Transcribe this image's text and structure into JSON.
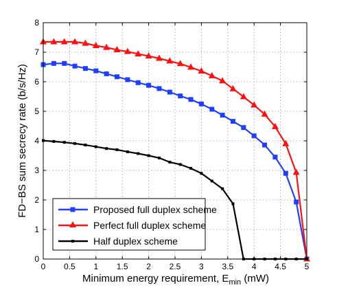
{
  "chart_data": {
    "type": "line",
    "title": "",
    "xlabel": {
      "main": "Minimum energy requirement, E",
      "sub": "min",
      "unit": " (mW)"
    },
    "ylabel": "FD−BS sum secrecy rate  (b/s/Hz)",
    "xlim": [
      0,
      5
    ],
    "ylim": [
      0,
      8
    ],
    "xticks": [
      0,
      0.5,
      1,
      1.5,
      2,
      2.5,
      3,
      3.5,
      4,
      4.5,
      5
    ],
    "xtick_labels": [
      "0",
      "0.5",
      "1",
      "1.5",
      "2",
      "2.5",
      "3",
      "3.5",
      "4",
      "4.5",
      "5"
    ],
    "yticks": [
      0,
      1,
      2,
      3,
      4,
      5,
      6,
      7,
      8
    ],
    "ytick_labels": [
      "0",
      "1",
      "2",
      "3",
      "4",
      "5",
      "6",
      "7",
      "8"
    ],
    "grid": true,
    "legend_position": "bottom-left",
    "series": [
      {
        "name": "Proposed full duplex scheme",
        "color": "#1f3fff",
        "marker": "square",
        "x": [
          0,
          0.2,
          0.4,
          0.6,
          0.8,
          1.0,
          1.2,
          1.4,
          1.6,
          1.8,
          2.0,
          2.2,
          2.4,
          2.6,
          2.8,
          3.0,
          3.2,
          3.4,
          3.6,
          3.8,
          4.0,
          4.2,
          4.4,
          4.6,
          4.8,
          5.0
        ],
        "y": [
          6.58,
          6.62,
          6.62,
          6.53,
          6.45,
          6.37,
          6.27,
          6.17,
          6.07,
          5.97,
          5.88,
          5.77,
          5.65,
          5.52,
          5.4,
          5.25,
          5.07,
          4.87,
          4.66,
          4.45,
          4.17,
          3.86,
          3.45,
          2.9,
          1.93,
          0
        ]
      },
      {
        "name": "Perfect full duplex scheme",
        "color": "#ff1010",
        "marker": "triangle",
        "x": [
          0,
          0.2,
          0.4,
          0.6,
          0.8,
          1.0,
          1.2,
          1.4,
          1.6,
          1.8,
          2.0,
          2.2,
          2.4,
          2.6,
          2.8,
          3.0,
          3.2,
          3.4,
          3.6,
          3.8,
          4.0,
          4.2,
          4.4,
          4.6,
          4.8,
          5.0
        ],
        "y": [
          7.35,
          7.35,
          7.35,
          7.35,
          7.3,
          7.22,
          7.16,
          7.08,
          7.02,
          6.94,
          6.87,
          6.79,
          6.7,
          6.61,
          6.49,
          6.36,
          6.2,
          6.03,
          5.76,
          5.49,
          5.21,
          4.9,
          4.48,
          3.9,
          2.93,
          0
        ]
      },
      {
        "name": "Half duplex scheme",
        "color": "#000000",
        "marker": "x",
        "x": [
          0,
          0.2,
          0.4,
          0.6,
          0.8,
          1.0,
          1.2,
          1.4,
          1.6,
          1.8,
          2.0,
          2.2,
          2.4,
          2.6,
          2.8,
          3.0,
          3.2,
          3.4,
          3.6,
          3.8,
          4.0,
          4.2,
          4.4,
          4.6,
          4.8,
          5.0
        ],
        "y": [
          4.01,
          3.98,
          3.95,
          3.91,
          3.86,
          3.8,
          3.74,
          3.7,
          3.63,
          3.57,
          3.5,
          3.42,
          3.28,
          3.2,
          3.07,
          2.9,
          2.64,
          2.38,
          1.87,
          0,
          0,
          0,
          0,
          0,
          0,
          0
        ]
      }
    ]
  }
}
